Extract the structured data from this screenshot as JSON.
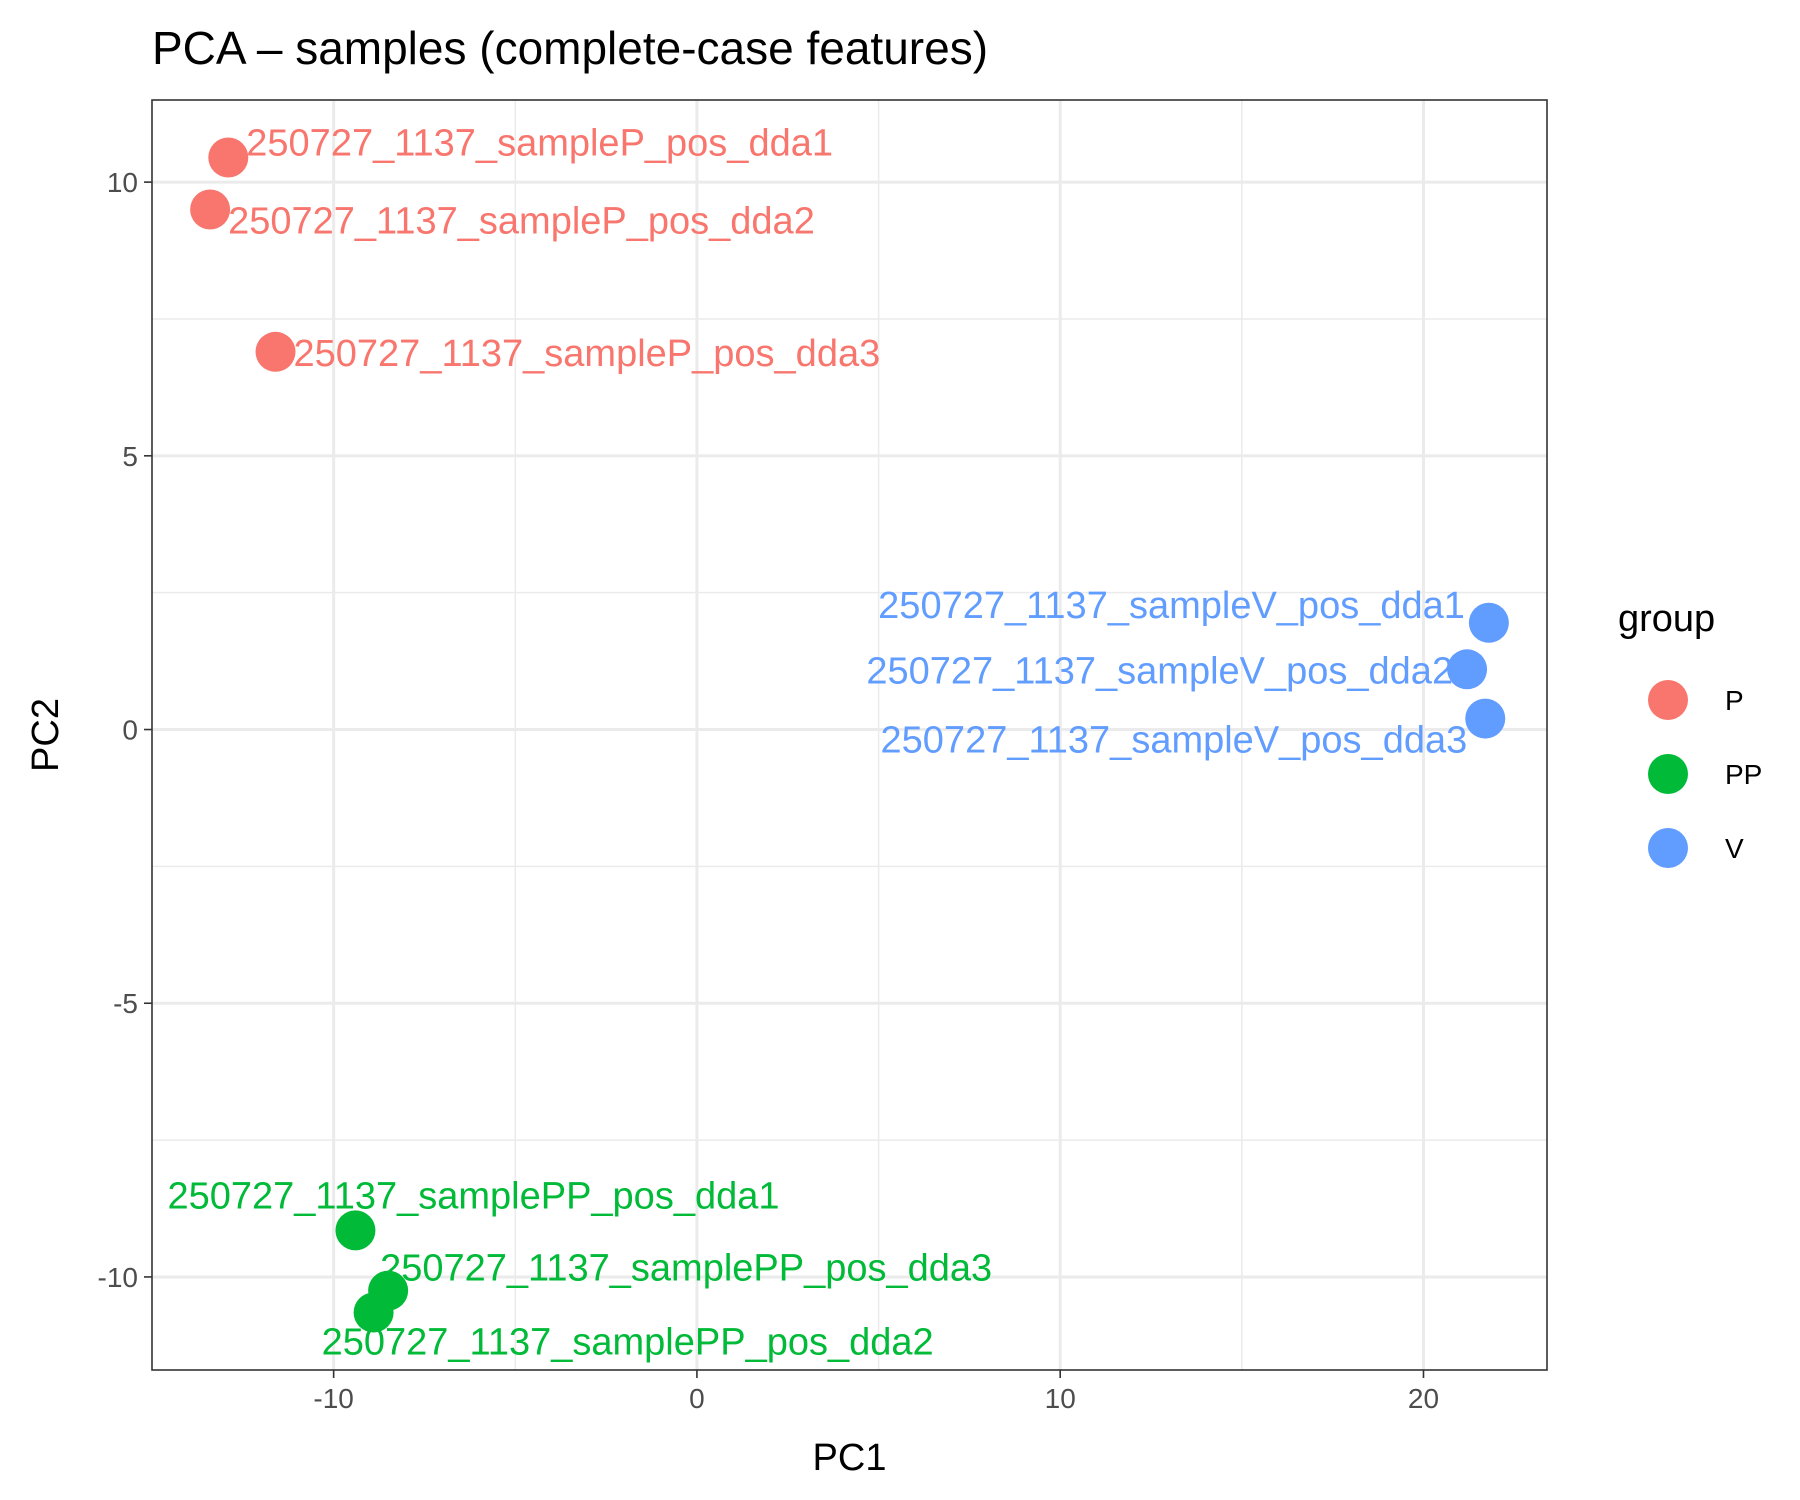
{
  "chart_data": {
    "type": "scatter",
    "title": "PCA – samples (complete-case features)",
    "xlabel": "PC1",
    "ylabel": "PC2",
    "xlim": [
      -15,
      23.4
    ],
    "ylim": [
      -11.7,
      11.5
    ],
    "xticks": [
      -10,
      0,
      10,
      20
    ],
    "yticks": [
      -10,
      -5,
      0,
      5,
      10
    ],
    "grid": true,
    "legend": {
      "title": "group",
      "position": "right",
      "items": [
        {
          "label": "P",
          "color": "#F8766D"
        },
        {
          "label": "PP",
          "color": "#00BA38"
        },
        {
          "label": "V",
          "color": "#619CFF"
        }
      ]
    },
    "series": [
      {
        "name": "P",
        "color": "#F8766D",
        "points": [
          {
            "x": -12.9,
            "y": 10.45,
            "label": "250727_1137_sampleP_pos_dda1"
          },
          {
            "x": -13.4,
            "y": 9.5,
            "label": "250727_1137_sampleP_pos_dda2"
          },
          {
            "x": -11.6,
            "y": 6.9,
            "label": "250727_1137_sampleP_pos_dda3"
          }
        ]
      },
      {
        "name": "PP",
        "color": "#00BA38",
        "points": [
          {
            "x": -9.4,
            "y": -9.15,
            "label": "250727_1137_samplePP_pos_dda1"
          },
          {
            "x": -8.9,
            "y": -10.65,
            "label": "250727_1137_samplePP_pos_dda2"
          },
          {
            "x": -8.5,
            "y": -10.25,
            "label": "250727_1137_samplePP_pos_dda3"
          }
        ]
      },
      {
        "name": "V",
        "color": "#619CFF",
        "points": [
          {
            "x": 21.8,
            "y": 1.95,
            "label": "250727_1137_sampleV_pos_dda1"
          },
          {
            "x": 21.2,
            "y": 1.1,
            "label": "250727_1137_sampleV_pos_dda2"
          },
          {
            "x": 21.7,
            "y": 0.2,
            "label": "250727_1137_sampleV_pos_dda3"
          }
        ]
      }
    ]
  }
}
